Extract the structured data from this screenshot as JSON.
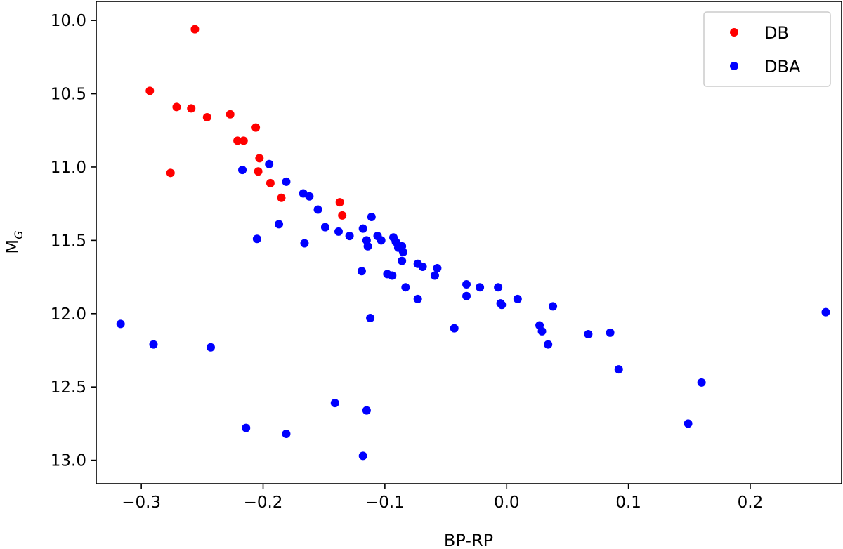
{
  "chart_data": {
    "type": "scatter",
    "xlabel": "BP-RP",
    "ylabel_main": "M",
    "ylabel_sub": "G",
    "xlim": [
      -0.337,
      0.275
    ],
    "ylim": [
      13.16,
      9.87
    ],
    "y_inverted": true,
    "grid": false,
    "legend_placement": "top-right",
    "x_ticks": [
      -0.3,
      -0.2,
      -0.1,
      0.0,
      0.1,
      0.2
    ],
    "x_tick_labels": [
      "−0.3",
      "−0.2",
      "−0.1",
      "0.0",
      "0.1",
      "0.2"
    ],
    "y_ticks": [
      10.0,
      10.5,
      11.0,
      11.5,
      12.0,
      12.5,
      13.0
    ],
    "y_tick_labels": [
      "10.0",
      "10.5",
      "11.0",
      "11.5",
      "12.0",
      "12.5",
      "13.0"
    ],
    "series": [
      {
        "name": "DB",
        "color": "#ff0000",
        "points": [
          [
            -0.256,
            10.06
          ],
          [
            -0.293,
            10.48
          ],
          [
            -0.271,
            10.59
          ],
          [
            -0.259,
            10.6
          ],
          [
            -0.246,
            10.66
          ],
          [
            -0.227,
            10.64
          ],
          [
            -0.206,
            10.73
          ],
          [
            -0.221,
            10.82
          ],
          [
            -0.216,
            10.82
          ],
          [
            -0.203,
            10.94
          ],
          [
            -0.276,
            11.04
          ],
          [
            -0.204,
            11.03
          ],
          [
            -0.194,
            11.11
          ],
          [
            -0.185,
            11.21
          ],
          [
            -0.137,
            11.24
          ],
          [
            -0.135,
            11.33
          ]
        ]
      },
      {
        "name": "DBA",
        "color": "#0000ff",
        "points": [
          [
            -0.217,
            11.02
          ],
          [
            -0.195,
            10.98
          ],
          [
            -0.181,
            11.1
          ],
          [
            -0.167,
            11.18
          ],
          [
            -0.162,
            11.2
          ],
          [
            -0.155,
            11.29
          ],
          [
            -0.149,
            11.41
          ],
          [
            -0.187,
            11.39
          ],
          [
            -0.205,
            11.49
          ],
          [
            -0.166,
            11.52
          ],
          [
            -0.138,
            11.44
          ],
          [
            -0.129,
            11.47
          ],
          [
            -0.111,
            11.34
          ],
          [
            -0.118,
            11.42
          ],
          [
            -0.115,
            11.5
          ],
          [
            -0.114,
            11.54
          ],
          [
            -0.106,
            11.47
          ],
          [
            -0.103,
            11.5
          ],
          [
            -0.093,
            11.48
          ],
          [
            -0.091,
            11.51
          ],
          [
            -0.089,
            11.55
          ],
          [
            -0.086,
            11.54
          ],
          [
            -0.085,
            11.58
          ],
          [
            -0.086,
            11.64
          ],
          [
            -0.119,
            11.71
          ],
          [
            -0.098,
            11.73
          ],
          [
            -0.094,
            11.74
          ],
          [
            -0.073,
            11.66
          ],
          [
            -0.069,
            11.68
          ],
          [
            -0.057,
            11.69
          ],
          [
            -0.059,
            11.74
          ],
          [
            -0.083,
            11.82
          ],
          [
            -0.073,
            11.9
          ],
          [
            -0.112,
            12.03
          ],
          [
            -0.033,
            11.8
          ],
          [
            -0.022,
            11.82
          ],
          [
            -0.007,
            11.82
          ],
          [
            -0.033,
            11.88
          ],
          [
            -0.005,
            11.93
          ],
          [
            -0.004,
            11.94
          ],
          [
            0.009,
            11.9
          ],
          [
            0.038,
            11.95
          ],
          [
            -0.043,
            12.1
          ],
          [
            0.027,
            12.08
          ],
          [
            0.029,
            12.12
          ],
          [
            0.034,
            12.21
          ],
          [
            0.067,
            12.14
          ],
          [
            0.085,
            12.13
          ],
          [
            0.092,
            12.38
          ],
          [
            0.16,
            12.47
          ],
          [
            0.149,
            12.75
          ],
          [
            0.262,
            11.99
          ],
          [
            -0.317,
            12.07
          ],
          [
            -0.29,
            12.21
          ],
          [
            -0.243,
            12.23
          ],
          [
            -0.141,
            12.61
          ],
          [
            -0.115,
            12.66
          ],
          [
            -0.214,
            12.78
          ],
          [
            -0.181,
            12.82
          ],
          [
            -0.118,
            12.97
          ]
        ]
      }
    ]
  }
}
